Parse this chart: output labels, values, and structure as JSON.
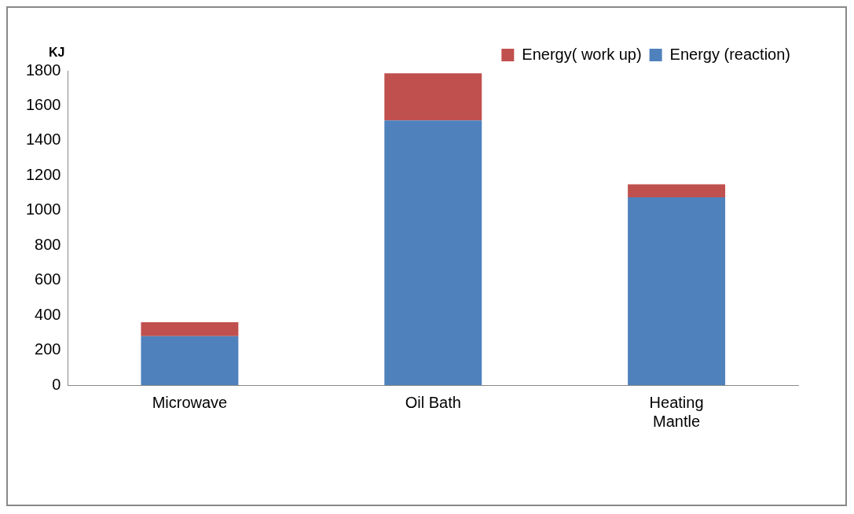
{
  "chart_data": {
    "type": "bar",
    "ylabel": "KJ",
    "categories": [
      "Microwave",
      "Oil Bath",
      "Heating\nMantle"
    ],
    "stacked": true,
    "series": [
      {
        "name": "Energy (reaction)",
        "color": "#4f81bd",
        "values": [
          280,
          1515,
          1075
        ]
      },
      {
        "name": "Energy( work up)",
        "color": "#c0504d",
        "values": [
          80,
          270,
          75
        ]
      }
    ],
    "ylim": [
      0,
      1800
    ],
    "yticks": [
      0,
      200,
      400,
      600,
      800,
      1000,
      1200,
      1400,
      1600,
      1800
    ],
    "grid": false,
    "legend": "top right"
  }
}
